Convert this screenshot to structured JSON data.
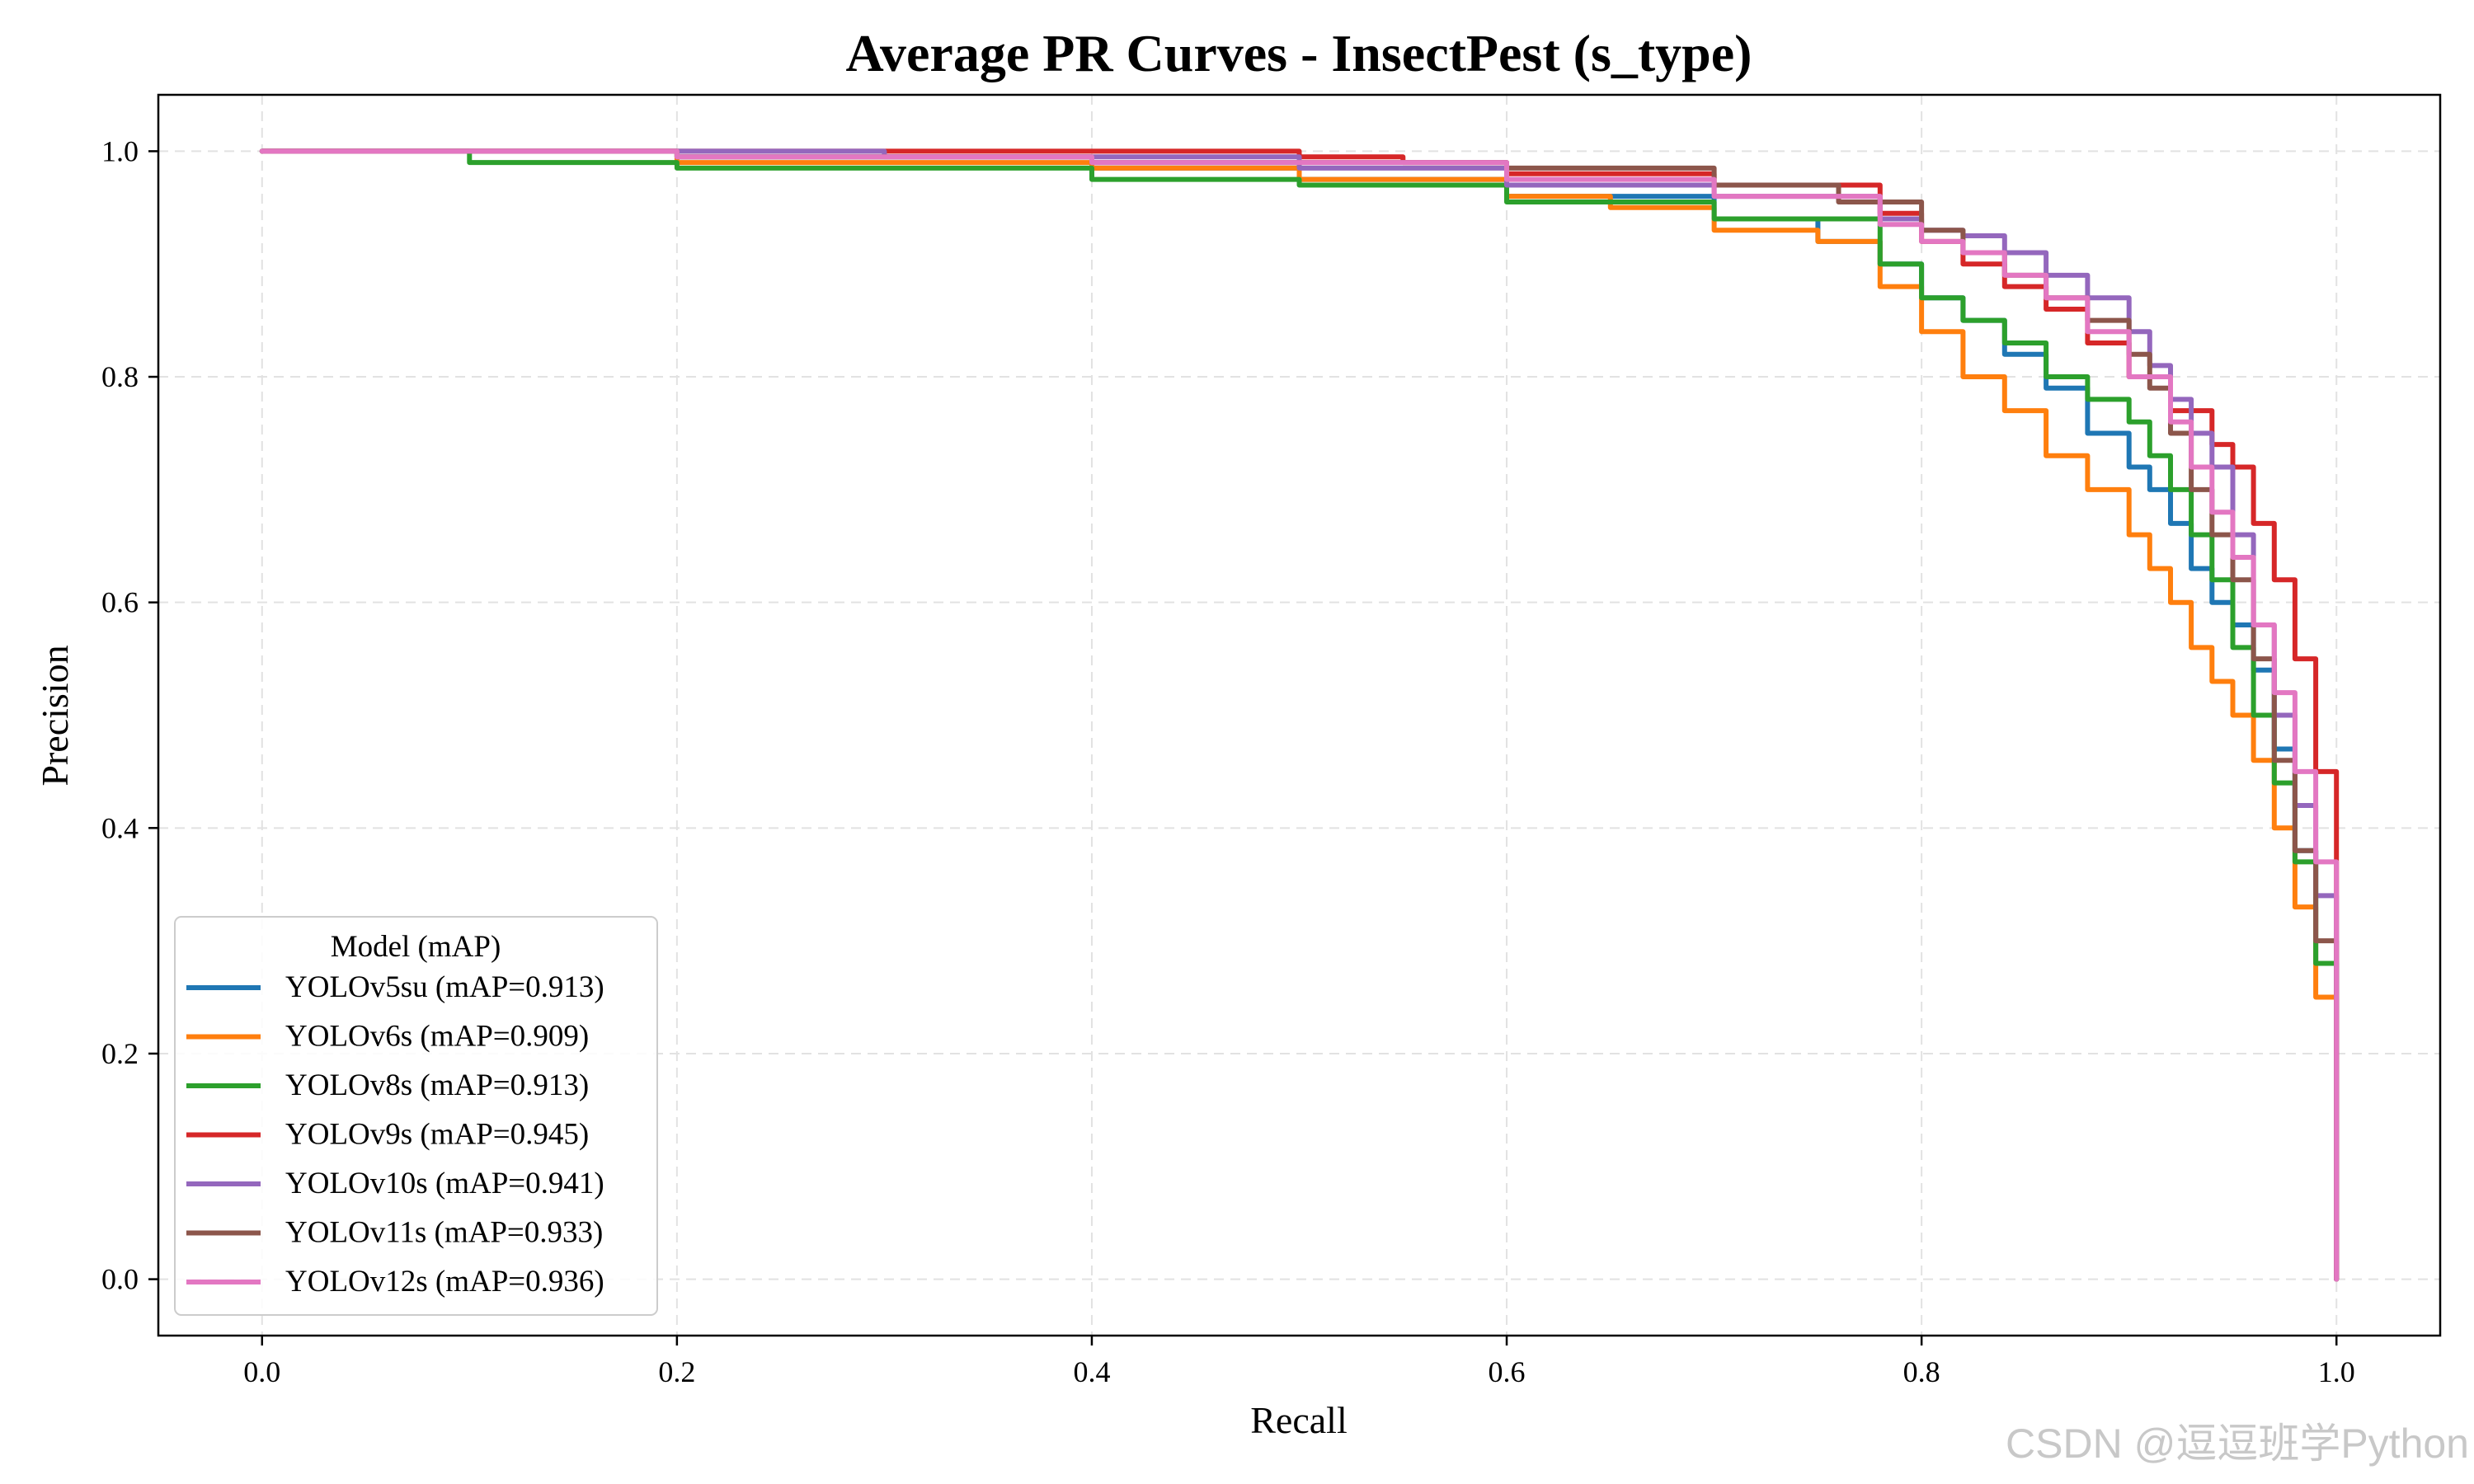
{
  "chart_data": {
    "type": "line",
    "title": "Average PR Curves - InsectPest (s_type)",
    "xlabel": "Recall",
    "ylabel": "Precision",
    "xlim": [
      -0.05,
      1.05
    ],
    "ylim": [
      -0.05,
      1.05
    ],
    "xticks": [
      "0.0",
      "0.2",
      "0.4",
      "0.6",
      "0.8",
      "1.0"
    ],
    "yticks": [
      "0.0",
      "0.2",
      "0.4",
      "0.6",
      "0.8",
      "1.0"
    ],
    "grid": true,
    "legend": {
      "title": "Model (mAP)",
      "position": "lower-left"
    },
    "series": [
      {
        "name": "YOLOv5su (mAP=0.913)",
        "color": "#1f77b4",
        "x": [
          0,
          0.2,
          0.4,
          0.5,
          0.6,
          0.7,
          0.75,
          0.78,
          0.8,
          0.82,
          0.84,
          0.86,
          0.88,
          0.9,
          0.91,
          0.92,
          0.93,
          0.94,
          0.95,
          0.96,
          0.97,
          0.98,
          0.99,
          1.0,
          1.0
        ],
        "y": [
          1.0,
          0.995,
          0.985,
          0.975,
          0.96,
          0.94,
          0.92,
          0.9,
          0.87,
          0.85,
          0.82,
          0.79,
          0.75,
          0.72,
          0.7,
          0.67,
          0.63,
          0.6,
          0.58,
          0.54,
          0.47,
          0.38,
          0.28,
          0.15,
          0.0
        ]
      },
      {
        "name": "YOLOv6s (mAP=0.909)",
        "color": "#ff7f0e",
        "x": [
          0,
          0.2,
          0.4,
          0.5,
          0.6,
          0.65,
          0.7,
          0.75,
          0.78,
          0.8,
          0.82,
          0.84,
          0.86,
          0.88,
          0.9,
          0.91,
          0.92,
          0.93,
          0.94,
          0.95,
          0.96,
          0.97,
          0.98,
          0.99,
          1.0,
          1.0
        ],
        "y": [
          1.0,
          0.99,
          0.985,
          0.975,
          0.96,
          0.95,
          0.93,
          0.92,
          0.88,
          0.84,
          0.8,
          0.77,
          0.73,
          0.7,
          0.66,
          0.63,
          0.6,
          0.56,
          0.53,
          0.5,
          0.46,
          0.4,
          0.33,
          0.25,
          0.15,
          0.0
        ]
      },
      {
        "name": "YOLOv8s (mAP=0.913)",
        "color": "#2ca02c",
        "x": [
          0,
          0.1,
          0.2,
          0.4,
          0.5,
          0.6,
          0.7,
          0.78,
          0.8,
          0.82,
          0.84,
          0.86,
          0.88,
          0.9,
          0.91,
          0.92,
          0.93,
          0.94,
          0.95,
          0.96,
          0.97,
          0.98,
          0.99,
          1.0,
          1.0
        ],
        "y": [
          1.0,
          0.99,
          0.985,
          0.975,
          0.97,
          0.955,
          0.94,
          0.9,
          0.87,
          0.85,
          0.83,
          0.8,
          0.78,
          0.76,
          0.73,
          0.7,
          0.66,
          0.62,
          0.56,
          0.5,
          0.44,
          0.37,
          0.28,
          0.2,
          0.0
        ]
      },
      {
        "name": "YOLOv9s (mAP=0.945)",
        "color": "#d62728",
        "x": [
          0,
          0.3,
          0.5,
          0.55,
          0.6,
          0.7,
          0.78,
          0.8,
          0.82,
          0.84,
          0.86,
          0.88,
          0.9,
          0.92,
          0.94,
          0.95,
          0.96,
          0.97,
          0.98,
          0.99,
          1.0,
          1.0
        ],
        "y": [
          1.0,
          1.0,
          0.995,
          0.99,
          0.98,
          0.97,
          0.945,
          0.92,
          0.9,
          0.88,
          0.86,
          0.83,
          0.8,
          0.77,
          0.74,
          0.72,
          0.67,
          0.62,
          0.55,
          0.45,
          0.35,
          0.0
        ]
      },
      {
        "name": "YOLOv10s (mAP=0.941)",
        "color": "#9467bd",
        "x": [
          0,
          0.3,
          0.5,
          0.6,
          0.7,
          0.78,
          0.8,
          0.82,
          0.84,
          0.86,
          0.88,
          0.9,
          0.91,
          0.92,
          0.93,
          0.94,
          0.95,
          0.96,
          0.97,
          0.98,
          0.99,
          1.0,
          1.0
        ],
        "y": [
          1.0,
          0.995,
          0.985,
          0.97,
          0.96,
          0.94,
          0.93,
          0.925,
          0.91,
          0.89,
          0.87,
          0.84,
          0.81,
          0.78,
          0.75,
          0.72,
          0.66,
          0.58,
          0.5,
          0.42,
          0.34,
          0.25,
          0.0
        ]
      },
      {
        "name": "YOLOv11s (mAP=0.933)",
        "color": "#8c564b",
        "x": [
          0,
          0.2,
          0.4,
          0.6,
          0.7,
          0.76,
          0.8,
          0.82,
          0.84,
          0.86,
          0.88,
          0.9,
          0.91,
          0.92,
          0.93,
          0.94,
          0.95,
          0.96,
          0.97,
          0.98,
          0.99,
          1.0,
          1.0
        ],
        "y": [
          1.0,
          0.995,
          0.99,
          0.985,
          0.97,
          0.955,
          0.93,
          0.91,
          0.89,
          0.87,
          0.85,
          0.82,
          0.79,
          0.75,
          0.7,
          0.66,
          0.62,
          0.55,
          0.46,
          0.38,
          0.3,
          0.25,
          0.0
        ]
      },
      {
        "name": "YOLOv12s (mAP=0.936)",
        "color": "#e377c2",
        "x": [
          0,
          0.2,
          0.4,
          0.6,
          0.7,
          0.78,
          0.8,
          0.82,
          0.84,
          0.86,
          0.88,
          0.9,
          0.92,
          0.93,
          0.94,
          0.95,
          0.96,
          0.97,
          0.98,
          0.99,
          1.0,
          1.0
        ],
        "y": [
          1.0,
          0.995,
          0.99,
          0.975,
          0.96,
          0.935,
          0.92,
          0.91,
          0.89,
          0.87,
          0.84,
          0.8,
          0.76,
          0.72,
          0.68,
          0.64,
          0.58,
          0.52,
          0.45,
          0.37,
          0.28,
          0.0
        ]
      }
    ]
  },
  "watermark": {
    "text": "CSDN @逗逗班学Python"
  }
}
